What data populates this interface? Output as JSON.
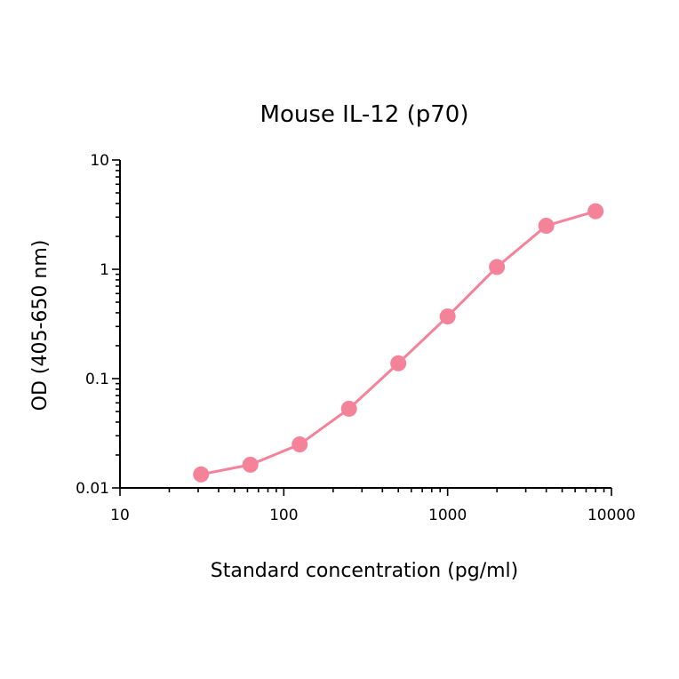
{
  "chart_data": {
    "type": "line",
    "title": "Mouse IL-12 (p70)",
    "xlabel": "Standard concentration (pg/ml)",
    "ylabel": "OD (405-650 nm)",
    "x_scale": "log",
    "y_scale": "log",
    "xlim": [
      10,
      10000
    ],
    "ylim": [
      0.01,
      10
    ],
    "x_ticks": [
      {
        "value": 10,
        "label": "10"
      },
      {
        "value": 100,
        "label": "100"
      },
      {
        "value": 1000,
        "label": "1000"
      },
      {
        "value": 10000,
        "label": "10000"
      }
    ],
    "y_ticks": [
      {
        "value": 0.01,
        "label": "0.01"
      },
      {
        "value": 0.1,
        "label": "0.1"
      },
      {
        "value": 1,
        "label": "1"
      },
      {
        "value": 10,
        "label": "10"
      }
    ],
    "grid": false,
    "legend": "none",
    "series": [
      {
        "color": "#f4839a",
        "x": [
          31.25,
          62.5,
          125,
          250,
          500,
          1000,
          2000,
          4000,
          8000
        ],
        "y": [
          0.0133,
          0.0163,
          0.025,
          0.053,
          0.138,
          0.37,
          1.05,
          2.5,
          3.4
        ]
      }
    ]
  }
}
